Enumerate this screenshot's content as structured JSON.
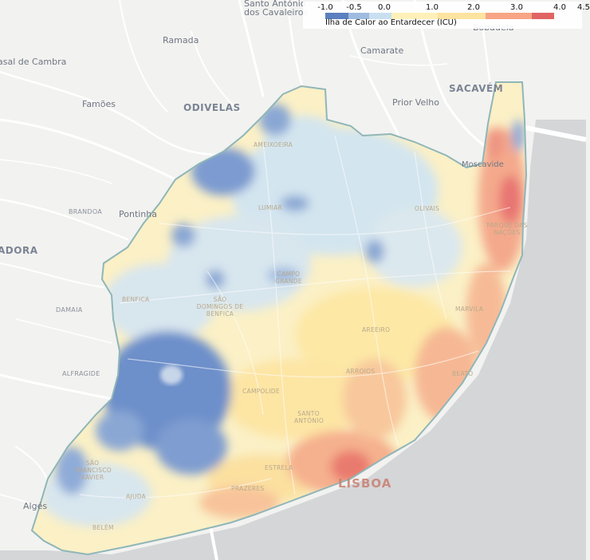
{
  "legend": {
    "title": "Ilha de Calor ao Entardecer (ICU)",
    "ticks": [
      "-1.0",
      "-0.5",
      "0.0",
      "1.0",
      "2.0",
      "3.0",
      "4.0",
      "4.5"
    ],
    "colors": [
      "#5b7fbf",
      "#9fbbe0",
      "#c9dff0",
      "#fff0b8",
      "#fde3a0",
      "#f7a585",
      "#e06464"
    ]
  },
  "map": {
    "towns": [
      "Santo António",
      "dos Cavaleiros",
      "Ramada",
      "Bobadela",
      "asal de Cambra",
      "Camarate",
      "Famões",
      "ODIVELAS",
      "Prior Velho",
      "SACAVÉM",
      "Moscavide",
      "BRANDOA",
      "Pontinha",
      "ADORA",
      "DAMAIA",
      "ALFRAGIDE",
      "Algés"
    ],
    "bairros": [
      "AMEIXOEIRA",
      "LUMIAR",
      "OLIVAIS",
      "PARQUE DAS NAÇÕES",
      "CAMPO GRANDE",
      "BENFICA",
      "SÃO DOMINGOS DE BENFICA",
      "MARVILA",
      "AREEIRO",
      "ARROIOS",
      "BEATO",
      "CAMPOLIDE",
      "SANTO ANTÓNIO",
      "ESTRELA",
      "SÃO FRANCISCO XAVIER",
      "AJUDA",
      "PRAZERES",
      "BELÉM"
    ],
    "city": "LISBOA",
    "colors": {
      "land": "#f2f2f0",
      "water": "#d4d6d8",
      "roads": "#ffffff",
      "boundary": "#8fb6b8",
      "cool": "#5b7fbf",
      "neutral": "#cfe3ef",
      "warm": "#fbe7a7",
      "hot": "#f09a80",
      "hottest": "#e05a5a"
    }
  }
}
